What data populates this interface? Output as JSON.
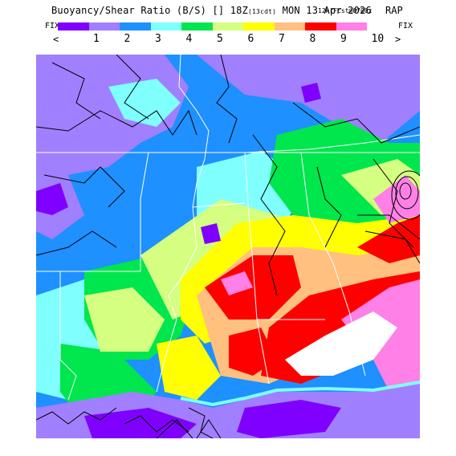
{
  "header": {
    "title": "Buoyancy/Shear Ratio (B/S) [] 18Z",
    "valid_local": "(13cdt)",
    "date": "MON 13 Apr 2026",
    "init": "12hrFcst@0700z",
    "model": "RAP"
  },
  "legend": {
    "left_label": "FIX",
    "right_label": "FIX",
    "prev_arrow": "<",
    "next_arrow": ">",
    "colors": [
      "#8000ff",
      "#a080ff",
      "#1e90ff",
      "#80ffff",
      "#00e64d",
      "#d4ff80",
      "#ffff00",
      "#ffc080",
      "#ff0000",
      "#ff80e6",
      "#ffffff"
    ],
    "ticks": [
      "1",
      "2",
      "3",
      "4",
      "5",
      "6",
      "7",
      "8",
      "9",
      "10"
    ]
  },
  "map": {
    "contour_color": "#000000",
    "border_color": "#ffffff",
    "ocean_color": "#a080ff"
  }
}
